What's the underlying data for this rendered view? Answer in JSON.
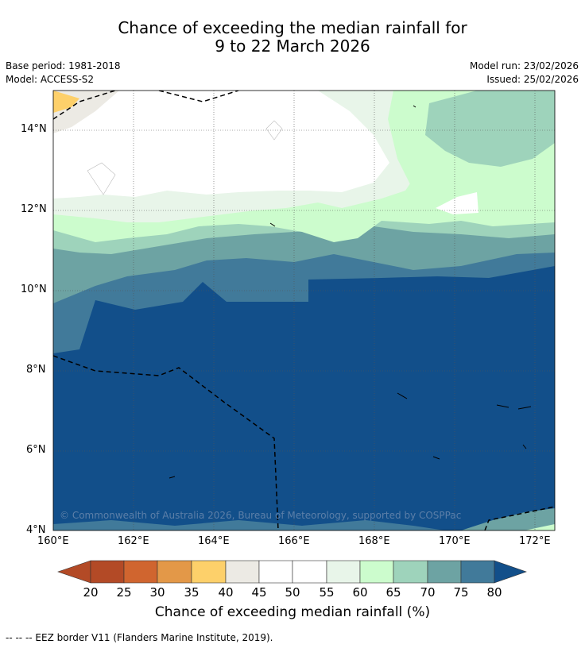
{
  "title": {
    "line1": "Chance of exceeding the median rainfall for",
    "line2": "9 to 22 March 2026"
  },
  "meta": {
    "base_period": "Base period: 1981-2018",
    "model": "Model: ACCESS-S2",
    "model_run": "Model run: 23/02/2026",
    "issued": "Issued: 25/02/2026"
  },
  "axes": {
    "lat_ticks": [
      "14°N",
      "12°N",
      "10°N",
      "8°N",
      "6°N",
      "4°N"
    ],
    "lon_ticks": [
      "160°E",
      "162°E",
      "164°E",
      "166°E",
      "168°E",
      "170°E",
      "172°E"
    ]
  },
  "map": {
    "copyright": "© Commonwealth of Australia 2026, Bureau of Meteorology, supported by COSPPac",
    "colors": {
      "c20": "#b34a26",
      "c25": "#d0652f",
      "c30": "#e39848",
      "c35": "#fdd06a",
      "c40": "#eceae4",
      "c45": "#ffffff",
      "c50": "#ffffff",
      "c55": "#e8f5e9",
      "c60": "#ccfccd",
      "c65": "#9ed3bb",
      "c70": "#6da3a3",
      "c75": "#417a9a",
      "c80": "#124f8a"
    }
  },
  "colorbar": {
    "labels": [
      "20",
      "25",
      "30",
      "35",
      "40",
      "45",
      "50",
      "55",
      "60",
      "65",
      "70",
      "75",
      "80"
    ],
    "title": "Chance of exceeding median rainfall (%)"
  },
  "footer": {
    "text": "--  --  -- EEZ border V11 (Flanders Marine Institute, 2019)."
  }
}
